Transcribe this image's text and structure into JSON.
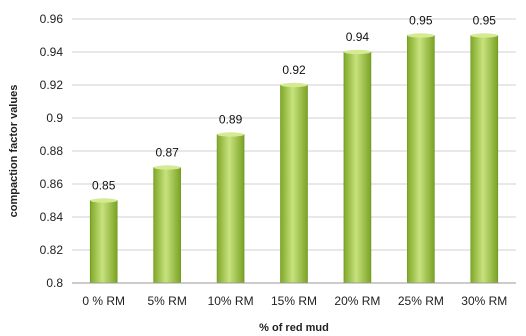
{
  "chart_data": {
    "type": "bar",
    "title": "",
    "xlabel": "% of red mud",
    "ylabel": "compaction factor values",
    "categories": [
      "0 % RM",
      "5% RM",
      "10% RM",
      "15% RM",
      "20% RM",
      "25% RM",
      "30% RM"
    ],
    "values": [
      0.85,
      0.87,
      0.89,
      0.92,
      0.94,
      0.95,
      0.95
    ],
    "value_labels": [
      "0.85",
      "0.87",
      "0.89",
      "0.92",
      "0.94",
      "0.95",
      "0.95"
    ],
    "ylim": [
      0.8,
      0.96
    ],
    "yticks": [
      0.8,
      0.82,
      0.84,
      0.86,
      0.88,
      0.9,
      0.92,
      0.94,
      0.96
    ],
    "ytick_labels": [
      "0.8",
      "0.82",
      "0.84",
      "0.86",
      "0.88",
      "0.9",
      "0.92",
      "0.94",
      "0.96"
    ],
    "grid": true,
    "legend": "none",
    "colors": {
      "bar_light": "#c6e07a",
      "bar_mid": "#9bc53d",
      "bar_dark": "#6f9a1f",
      "grid": "#d0d0d0",
      "axis": "#999999"
    }
  }
}
